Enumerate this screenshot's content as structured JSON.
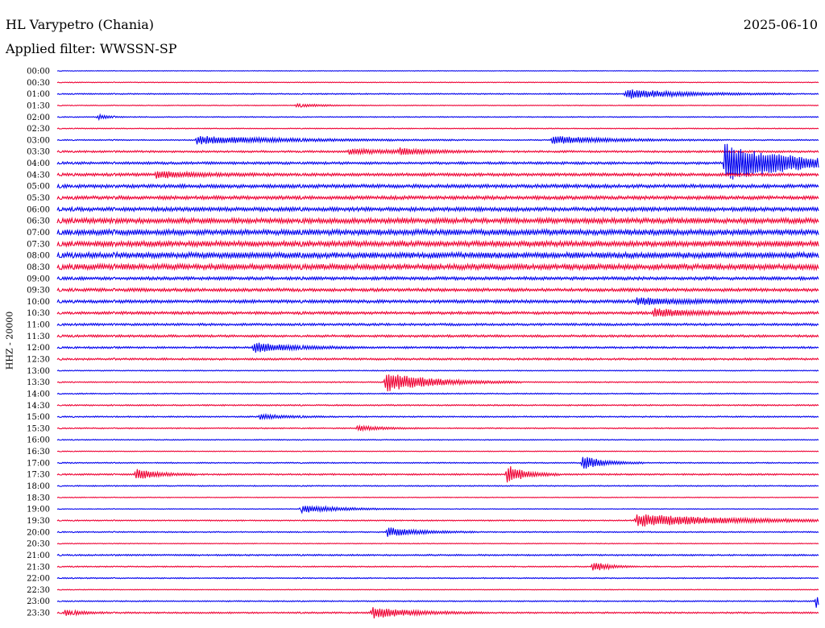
{
  "header": {
    "station": "HL Varypetro (Chania)",
    "date": "2025-06-10",
    "filter": "Applied filter: WWSSN-SP"
  },
  "colors": {
    "even_row": "#0000ee",
    "odd_row": "#ee0033"
  },
  "chart_data": {
    "type": "line",
    "title": "HL Varypetro (Chania)",
    "subtitle": "Applied filter: WWSSN-SP",
    "ylabel": "HHZ - 20000",
    "row_labels": [
      "00:00",
      "00:30",
      "01:00",
      "01:30",
      "02:00",
      "02:30",
      "03:00",
      "03:30",
      "04:00",
      "04:30",
      "05:00",
      "05:30",
      "06:00",
      "06:30",
      "07:00",
      "07:30",
      "08:00",
      "08:30",
      "09:00",
      "09:30",
      "10:00",
      "10:30",
      "11:00",
      "11:30",
      "12:00",
      "12:30",
      "13:00",
      "13:30",
      "14:00",
      "14:30",
      "15:00",
      "15:30",
      "16:00",
      "16:30",
      "17:00",
      "17:30",
      "18:00",
      "18:30",
      "19:00",
      "19:30",
      "20:00",
      "20:30",
      "21:00",
      "21:30",
      "22:00",
      "22:30",
      "23:00",
      "23:30"
    ],
    "row_minutes": 30,
    "noise_level": [
      0.3,
      0.4,
      0.6,
      0.4,
      0.5,
      0.5,
      0.6,
      1.0,
      1.3,
      1.5,
      1.8,
      1.8,
      2.0,
      2.6,
      2.8,
      2.8,
      2.9,
      2.8,
      1.6,
      1.6,
      1.6,
      1.4,
      1.2,
      1.2,
      1.0,
      1.0,
      0.5,
      0.6,
      0.6,
      0.7,
      0.7,
      0.6,
      0.5,
      0.4,
      0.6,
      0.8,
      0.6,
      0.4,
      0.4,
      0.6,
      0.6,
      0.4,
      0.8,
      0.6,
      0.6,
      0.4,
      0.6,
      0.8
    ],
    "events": [
      {
        "row": "01:00",
        "minute": 22.4,
        "amplitude": 6,
        "duration": 2.2
      },
      {
        "row": "01:30",
        "minute": 9.4,
        "amplitude": 2,
        "duration": 1
      },
      {
        "row": "02:00",
        "minute": 1.6,
        "amplitude": 3,
        "duration": 0.4
      },
      {
        "row": "03:00",
        "minute": 5.5,
        "amplitude": 5,
        "duration": 3.5
      },
      {
        "row": "03:00",
        "minute": 19.5,
        "amplitude": 5,
        "duration": 2.2
      },
      {
        "row": "03:30",
        "minute": 11.5,
        "amplitude": 3,
        "duration": 2
      },
      {
        "row": "03:30",
        "minute": 13.5,
        "amplitude": 3,
        "duration": 1
      },
      {
        "row": "04:00",
        "minute": 26.3,
        "amplitude": 24,
        "duration": 2.5
      },
      {
        "row": "04:30",
        "minute": 3.9,
        "amplitude": 4,
        "duration": 1.5
      },
      {
        "row": "10:00",
        "minute": 22.8,
        "amplitude": 4,
        "duration": 2
      },
      {
        "row": "10:30",
        "minute": 23.5,
        "amplitude": 5,
        "duration": 1.5
      },
      {
        "row": "12:00",
        "minute": 7.7,
        "amplitude": 6,
        "duration": 1.5
      },
      {
        "row": "13:30",
        "minute": 12.9,
        "amplitude": 12,
        "duration": 1.8
      },
      {
        "row": "15:00",
        "minute": 8.0,
        "amplitude": 3,
        "duration": 1
      },
      {
        "row": "15:30",
        "minute": 11.8,
        "amplitude": 3,
        "duration": 1
      },
      {
        "row": "17:00",
        "minute": 20.7,
        "amplitude": 9,
        "duration": 0.8
      },
      {
        "row": "17:30",
        "minute": 3.1,
        "amplitude": 7,
        "duration": 0.8
      },
      {
        "row": "17:30",
        "minute": 17.7,
        "amplitude": 12,
        "duration": 0.7
      },
      {
        "row": "19:00",
        "minute": 9.6,
        "amplitude": 5,
        "duration": 1.5
      },
      {
        "row": "19:30",
        "minute": 22.8,
        "amplitude": 8,
        "duration": 3.5
      },
      {
        "row": "20:00",
        "minute": 13.0,
        "amplitude": 6,
        "duration": 1.2
      },
      {
        "row": "21:30",
        "minute": 21.1,
        "amplitude": 6,
        "duration": 0.6
      },
      {
        "row": "23:00",
        "minute": 29.9,
        "amplitude": 8,
        "duration": 0.4
      },
      {
        "row": "23:30",
        "minute": 0.3,
        "amplitude": 4,
        "duration": 0.6
      },
      {
        "row": "23:30",
        "minute": 12.4,
        "amplitude": 7,
        "duration": 1.5
      }
    ]
  }
}
